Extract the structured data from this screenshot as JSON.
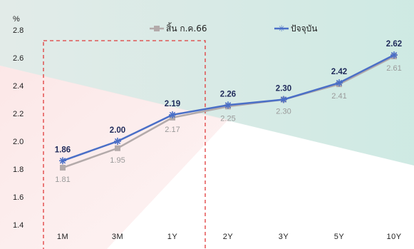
{
  "chart_data": {
    "type": "line",
    "ylabel": "%",
    "ylim": [
      1.4,
      2.8
    ],
    "yticks": [
      "2.8",
      "2.6",
      "2.4",
      "2.2",
      "2.0",
      "1.8",
      "1.6",
      "1.4"
    ],
    "categories": [
      "1M",
      "3M",
      "1Y",
      "2Y",
      "3Y",
      "5Y",
      "10Y"
    ],
    "legend_position": "top",
    "highlight_region": {
      "from": "1M",
      "to": "1Y",
      "style": "dashed-red"
    },
    "series": [
      {
        "name": "สิ้น ก.ค.66",
        "color": "#b3aaaa",
        "marker": "square",
        "values": [
          1.81,
          1.95,
          2.17,
          2.25,
          2.3,
          2.41,
          2.61
        ],
        "labels": [
          "1.81",
          "1.95",
          "2.17",
          "2.25",
          "2.30",
          "2.41",
          "2.61"
        ]
      },
      {
        "name": "ปัจจุบัน",
        "color": "#4a6fc7",
        "marker": "star",
        "values": [
          1.86,
          2.0,
          2.19,
          2.26,
          2.3,
          2.42,
          2.62
        ],
        "labels": [
          "1.86",
          "2.00",
          "2.19",
          "2.26",
          "2.30",
          "2.42",
          "2.62"
        ]
      }
    ]
  }
}
